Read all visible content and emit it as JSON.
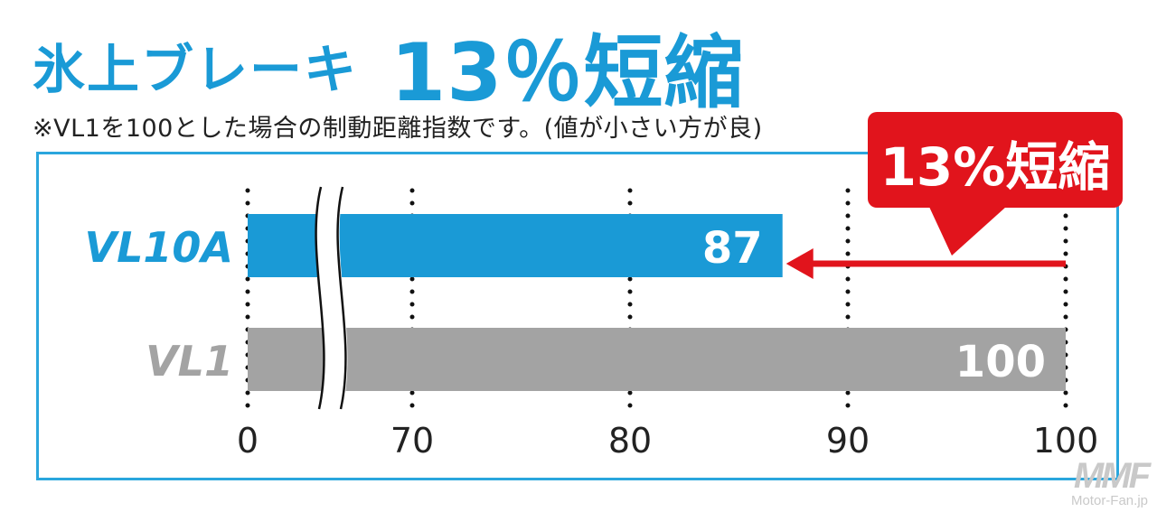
{
  "header": {
    "title": "氷上ブレーキ",
    "title_highlight": "13％短縮",
    "subtitle": "※VL1を100とした場合の制動距離指数です。(値が小さい方が良)"
  },
  "callout": {
    "text": "13%短縮"
  },
  "watermark": {
    "logo": "MMF",
    "site": "Motor-Fan.jp"
  },
  "colors": {
    "accent_blue": "#1a9ad6",
    "bar_gray": "#a3a3a3",
    "callout_red": "#e1141c"
  },
  "chart_data": {
    "type": "bar",
    "orientation": "horizontal",
    "categories": [
      "VL10A",
      "VL1"
    ],
    "values": [
      87,
      100
    ],
    "bar_colors": [
      "#1a9ad6",
      "#a3a3a3"
    ],
    "x_ticks": [
      0,
      70,
      80,
      90,
      100
    ],
    "axis_break": [
      0,
      70
    ],
    "xlim": [
      0,
      100
    ],
    "grid": "dotted vertical",
    "annotation": {
      "from": 100,
      "to": 87,
      "label": "13%短縮"
    }
  }
}
